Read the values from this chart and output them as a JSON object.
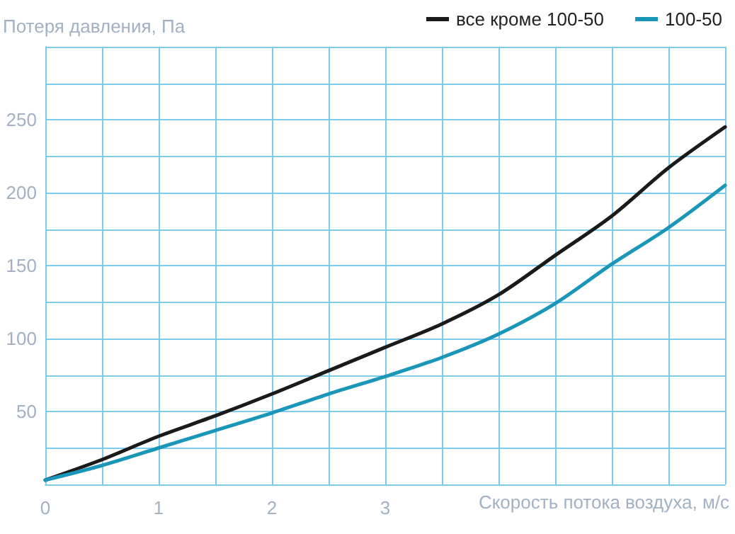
{
  "chart_data": {
    "type": "line",
    "xlabel": "Скорость потока воздуха, м/с",
    "ylabel": "Потеря давления, Па",
    "x": [
      0,
      0.5,
      1,
      1.5,
      2,
      2.5,
      3,
      3.5,
      4,
      4.5,
      5,
      5.5,
      6
    ],
    "series": [
      {
        "name": "все кроме 100-50",
        "color": "#1a1a1a",
        "values": [
          3,
          17,
          33,
          47,
          62,
          78,
          94,
          110,
          130,
          157,
          184,
          217,
          245
        ]
      },
      {
        "name": "100-50",
        "color": "#1a96b8",
        "values": [
          3,
          13,
          25,
          37,
          49,
          62,
          74,
          87,
          103,
          124,
          151,
          176,
          205
        ]
      }
    ],
    "xlim": [
      0,
      6
    ],
    "ylim": [
      0,
      300
    ],
    "xticks": [
      0,
      {
        "value": 0.5,
        "label": null
      },
      1,
      {
        "value": 1.5,
        "label": null
      },
      2,
      {
        "value": 2.5,
        "label": null
      },
      3,
      {
        "value": 3.5,
        "label": null
      },
      {
        "value": 4,
        "label": null
      },
      {
        "value": 4.5,
        "label": null
      },
      {
        "value": 5,
        "label": null
      },
      {
        "value": 5.5,
        "label": null
      },
      {
        "value": 6,
        "label": null
      }
    ],
    "yticks": [
      {
        "value": 0,
        "label": null
      },
      {
        "value": 25,
        "label": null
      },
      50,
      {
        "value": 75,
        "label": null
      },
      100,
      {
        "value": 125,
        "label": null
      },
      150,
      {
        "value": 175,
        "label": null
      },
      200,
      {
        "value": 225,
        "label": null
      },
      250,
      {
        "value": 275,
        "label": null
      },
      {
        "value": 300,
        "label": null
      }
    ],
    "grid": true,
    "legend": "top right",
    "marker": "none",
    "line_style": "solid"
  }
}
